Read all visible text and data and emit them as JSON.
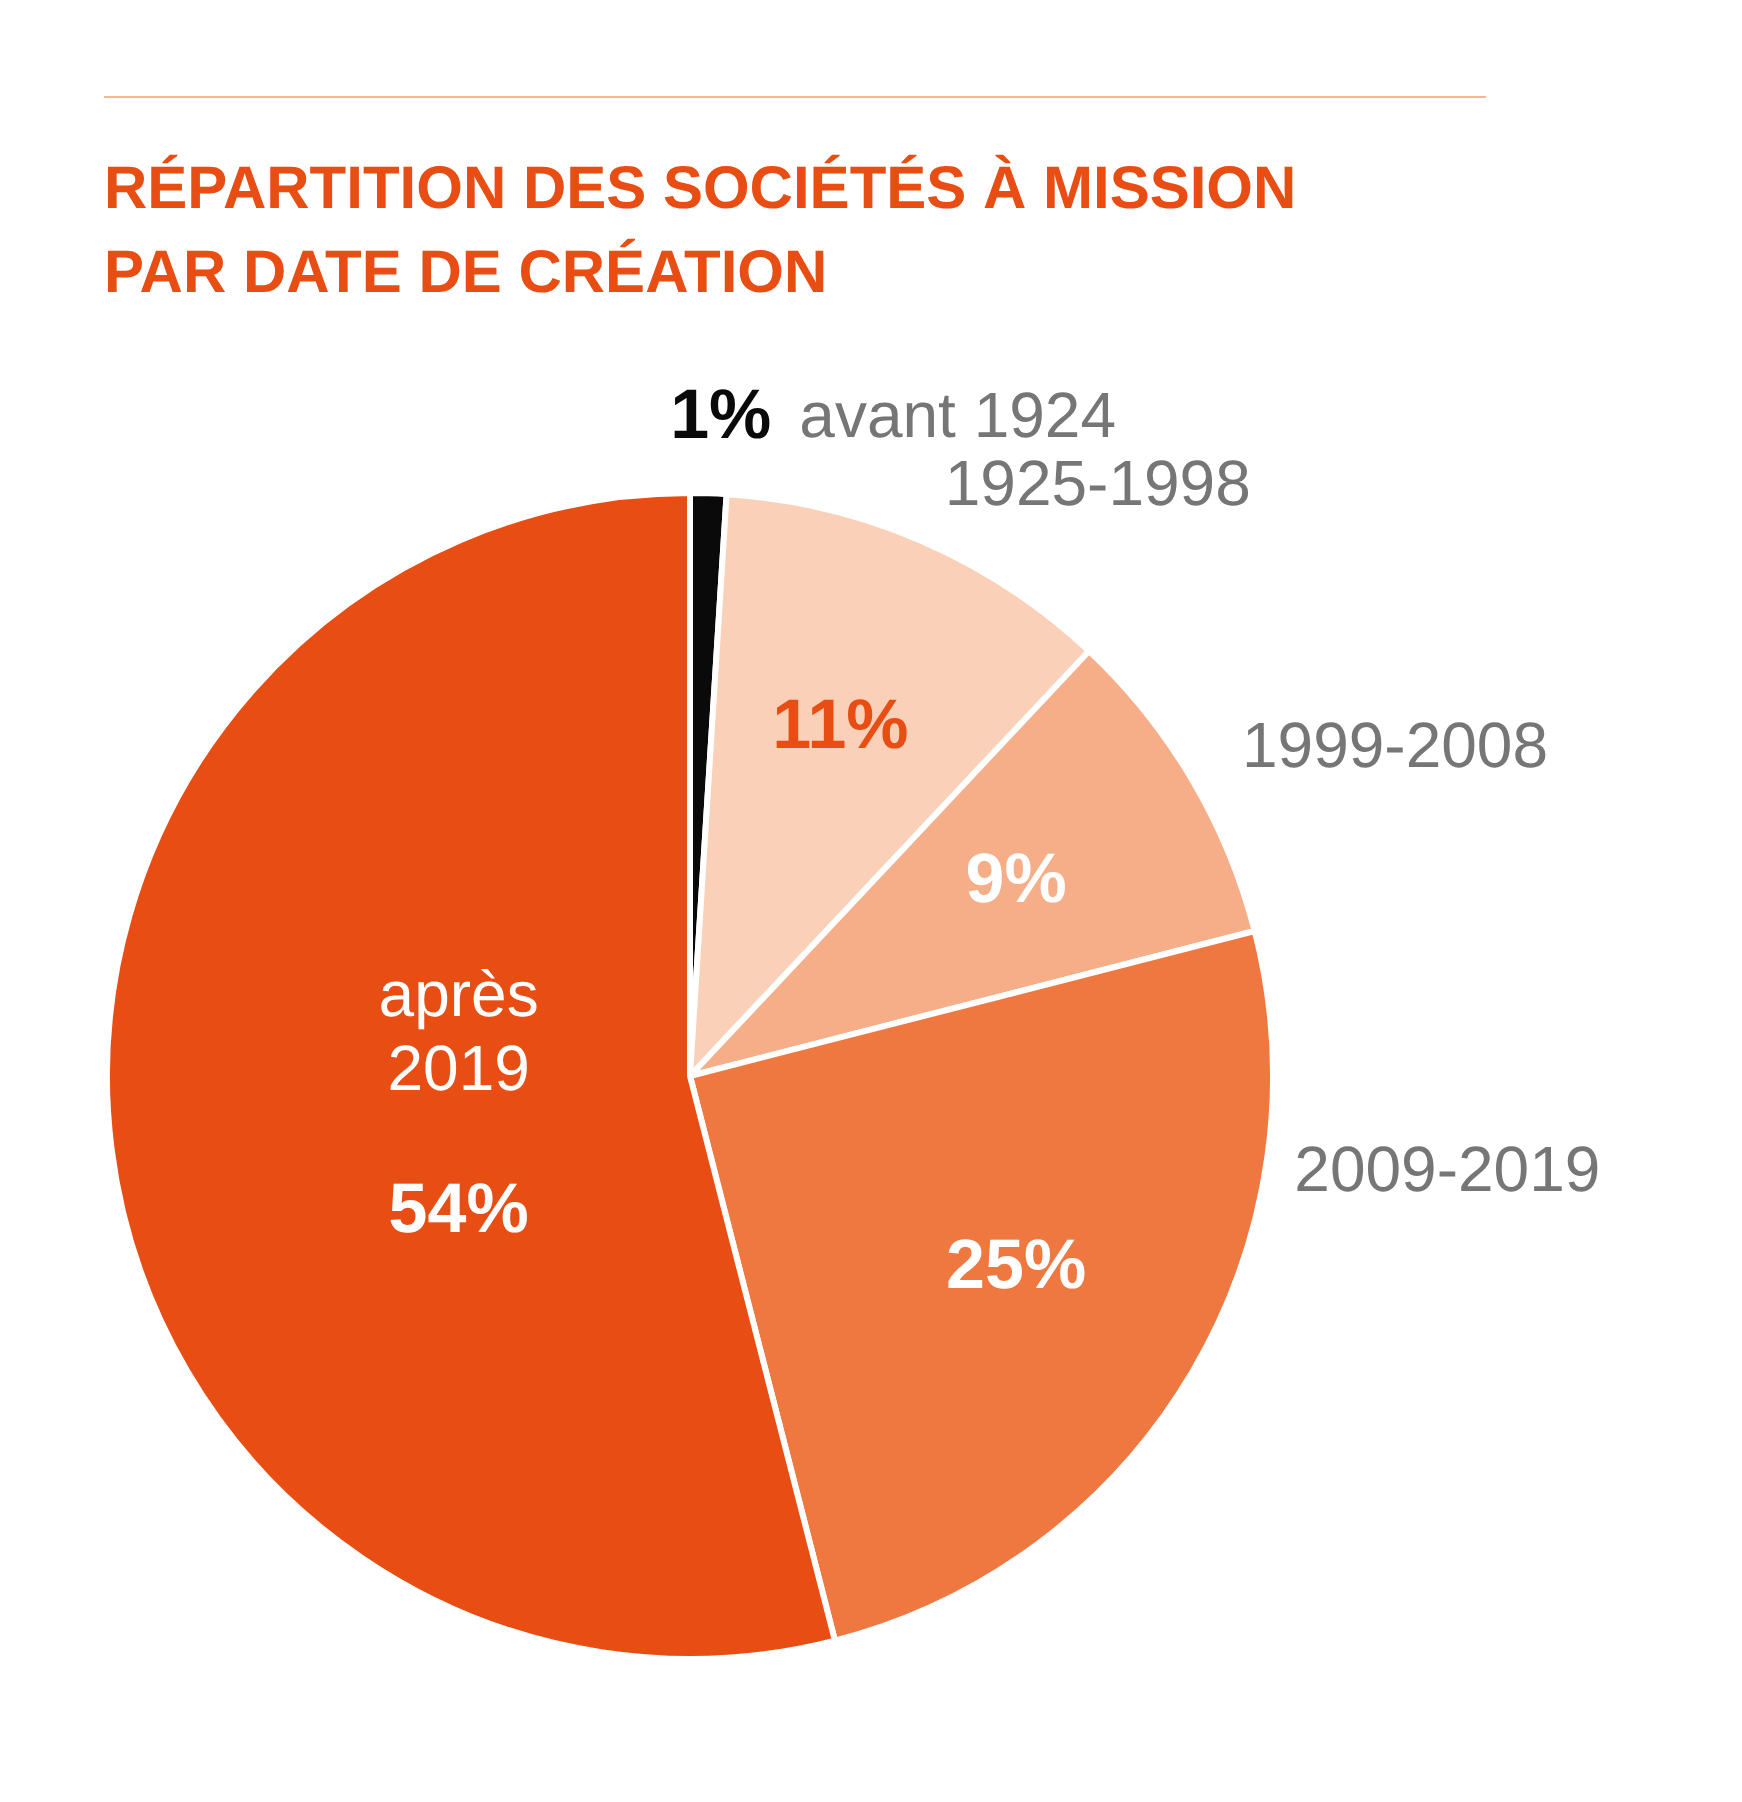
{
  "chart_data": {
    "type": "pie",
    "title": "RÉPARTITION DES SOCIÉTÉS À MISSION PAR DATE DE CRÉATION",
    "categories": [
      "avant 1924",
      "1925-1998",
      "1999-2008",
      "2009-2019",
      "après 2019"
    ],
    "values": [
      1,
      11,
      9,
      25,
      54
    ],
    "value_labels": [
      "1%",
      "11%",
      "9%",
      "25%",
      "54%"
    ],
    "colors": [
      "#0a0a0a",
      "#fbd0b8",
      "#f5ae88",
      "#ef7840",
      "#e84e14"
    ]
  }
}
